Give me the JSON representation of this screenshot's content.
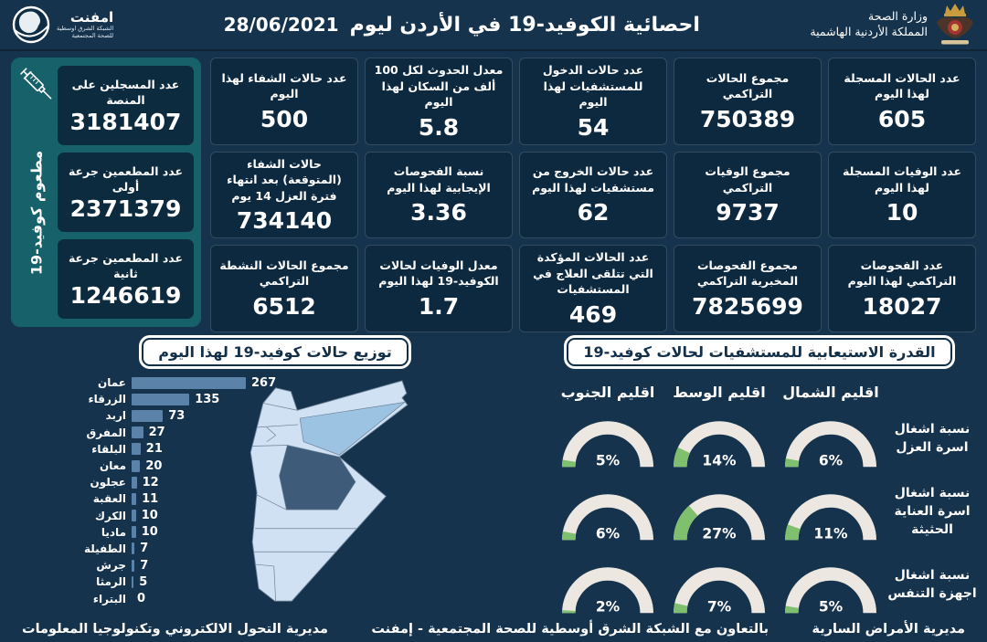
{
  "colors": {
    "background": "#16334d",
    "stat_box": "#0d2940",
    "teal_panel": "#17616a",
    "bar_color": "#5b82a8",
    "gauge_track": "#ece8e1",
    "gauge_fill": "#7fc06e"
  },
  "header": {
    "title": "احصائية الكوفيد-19 في الأردن ليوم",
    "date": "28/06/2021",
    "ministry": {
      "line1": "وزارة الصحة",
      "line2": "المملكة الأردنية الهاشمية"
    },
    "emphnet": {
      "name": "امفنت",
      "line1": "الشبكة الشرق اوسطية",
      "line2": "للصحة المجتمعية"
    }
  },
  "vaccination": {
    "side_label": "مطعوم كوفيد-19",
    "boxes": [
      {
        "label": "عدد المسجلين على المنصة",
        "value": "3181407"
      },
      {
        "label": "عدد المطعمين جرعة أولى",
        "value": "2371379"
      },
      {
        "label": "عدد المطعمين جرعة ثانية",
        "value": "1246619"
      }
    ]
  },
  "stats": [
    {
      "label": "عدد الحالات المسجلة لهذا اليوم",
      "value": "605"
    },
    {
      "label": "مجموع الحالات التراكمي",
      "value": "750389"
    },
    {
      "label": "عدد حالات الدخول للمستشفيات لهذا اليوم",
      "value": "54"
    },
    {
      "label": "معدل الحدوث لكل 100 ألف من السكان لهذا اليوم",
      "value": "5.8"
    },
    {
      "label": "عدد حالات الشفاء لهذا اليوم",
      "value": "500"
    },
    {
      "label": "عدد الوفيات المسجلة لهذا اليوم",
      "value": "10"
    },
    {
      "label": "مجموع الوفيات التراكمي",
      "value": "9737"
    },
    {
      "label": "عدد حالات الخروج من مستشفيات لهذا اليوم",
      "value": "62"
    },
    {
      "label": "نسبة الفحوصات الإيجابية لهذا اليوم",
      "value": "3.36"
    },
    {
      "label": "حالات الشفاء (المتوقعة) بعد انتهاء فترة العزل 14 يوم",
      "value": "734140"
    },
    {
      "label": "عدد الفحوصات التراكمي لهذا اليوم",
      "value": "18027"
    },
    {
      "label": "مجموع الفحوصات المخبرية التراكمي",
      "value": "7825699"
    },
    {
      "label": "عدد الحالات المؤكدة التي تتلقى العلاج في المستشفيات",
      "value": "469"
    },
    {
      "label": "معدل الوفيات لحالات الكوفيد-19 لهذا اليوم",
      "value": "1.7"
    },
    {
      "label": "مجموع الحالات النشطة التراكمي",
      "value": "6512"
    }
  ],
  "chart_data": [
    {
      "type": "bar",
      "title": "توزيع حالات كوفيد-19 لهذا اليوم",
      "orientation": "horizontal",
      "categories": [
        "عمان",
        "الزرقاء",
        "اربد",
        "المفرق",
        "البلقاء",
        "معان",
        "عجلون",
        "العقبة",
        "الكرك",
        "ماديا",
        "الطفيلة",
        "جرش",
        "الرمثا",
        "البتراء"
      ],
      "values": [
        267,
        135,
        73,
        27,
        21,
        20,
        12,
        11,
        10,
        10,
        7,
        7,
        5,
        0
      ],
      "xlim": [
        0,
        300
      ],
      "bar_color": "#5b82a8"
    },
    {
      "type": "gauge",
      "title": "القدرة الاستيعابية للمستشفيات لحالات كوفيد-19",
      "unit": "%",
      "columns": [
        "اقليم الشمال",
        "اقليم الوسط",
        "اقليم الجنوب"
      ],
      "rows": [
        {
          "label": "نسبة اشغال اسرة العزل",
          "values": [
            6,
            14,
            5
          ]
        },
        {
          "label": "نسبة اشغال اسرة العناية الحثيثة",
          "values": [
            11,
            27,
            6
          ]
        },
        {
          "label": "نسبة اشغال اجهزة التنفس",
          "values": [
            5,
            7,
            2
          ]
        }
      ],
      "track_color": "#ece8e1",
      "fill_color": "#7fc06e"
    }
  ],
  "map": {
    "name": "خارطة الأردن",
    "region_colors": {
      "base": "#cfe1f2",
      "amman": "#3e5c7a",
      "zarqa": "#9dc3e2"
    }
  },
  "footer": {
    "right": "مديرية الأمراض السارية",
    "center": "بالتعاون مع الشبكة الشرق أوسطية للصحة المجتمعية - إمفنت",
    "left": "مديرية التحول الالكتروني وتكنولوجيا المعلومات"
  }
}
